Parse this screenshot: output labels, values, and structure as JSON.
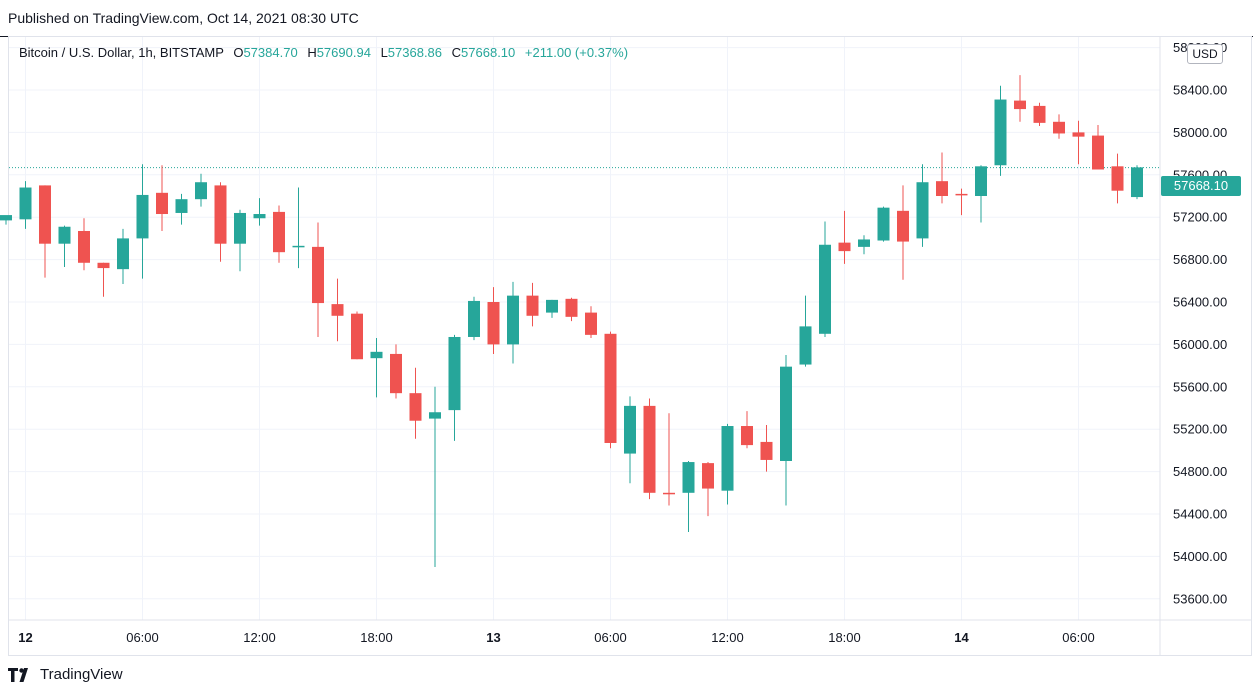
{
  "published_text": "Published on TradingView.com, Oct 14, 2021 08:30 UTC",
  "legend": {
    "symbol": "Bitcoin / U.S. Dollar, 1h, BITSTAMP",
    "o_label": "O",
    "o_value": "57384.70",
    "h_label": "H",
    "h_value": "57690.94",
    "l_label": "L",
    "l_value": "57368.86",
    "c_label": "C",
    "c_value": "57668.10",
    "change": "+211.00 (+0.37%)"
  },
  "currency_button": "USD",
  "last_price_label": "57668.10",
  "footer_brand": "TradingView",
  "colors": {
    "up": "#26a69a",
    "down": "#ef5350",
    "grid": "#f0f3fa",
    "text": "#131722"
  },
  "chart_data": {
    "type": "candlestick",
    "title": "Bitcoin / U.S. Dollar, 1h, BITSTAMP",
    "ylim": [
      53400,
      58900
    ],
    "y_ticks": [
      53600,
      54000,
      54400,
      54800,
      55200,
      55600,
      56000,
      56400,
      56800,
      57200,
      57600,
      58000,
      58400,
      58800
    ],
    "y_tick_labels": [
      "53600.00",
      "54000.00",
      "54400.00",
      "54800.00",
      "55200.00",
      "55600.00",
      "56000.00",
      "56400.00",
      "56800.00",
      "57200.00",
      "57600.00",
      "58000.00",
      "58400.00",
      "58800.00"
    ],
    "x_tick_labels": [
      {
        "index": 1,
        "label": "12",
        "bold": true
      },
      {
        "index": 7,
        "label": "06:00"
      },
      {
        "index": 13,
        "label": "12:00"
      },
      {
        "index": 19,
        "label": "18:00"
      },
      {
        "index": 25,
        "label": "13",
        "bold": true
      },
      {
        "index": 31,
        "label": "06:00"
      },
      {
        "index": 37,
        "label": "12:00"
      },
      {
        "index": 43,
        "label": "18:00"
      },
      {
        "index": 49,
        "label": "14",
        "bold": true
      },
      {
        "index": 55,
        "label": "06:00"
      }
    ],
    "last_price": 57668.1,
    "candles": [
      {
        "o": 57170,
        "h": 57210,
        "l": 57130,
        "c": 57220
      },
      {
        "o": 57180,
        "h": 57540,
        "l": 57090,
        "c": 57480
      },
      {
        "o": 57500,
        "h": 57500,
        "l": 56630,
        "c": 56950
      },
      {
        "o": 56950,
        "h": 57120,
        "l": 56730,
        "c": 57110
      },
      {
        "o": 57070,
        "h": 57190,
        "l": 56700,
        "c": 56770
      },
      {
        "o": 56770,
        "h": 56770,
        "l": 56450,
        "c": 56720
      },
      {
        "o": 56710,
        "h": 57090,
        "l": 56570,
        "c": 57000
      },
      {
        "o": 57000,
        "h": 57700,
        "l": 56620,
        "c": 57410
      },
      {
        "o": 57430,
        "h": 57690,
        "l": 57070,
        "c": 57230
      },
      {
        "o": 57240,
        "h": 57420,
        "l": 57130,
        "c": 57370
      },
      {
        "o": 57370,
        "h": 57610,
        "l": 57300,
        "c": 57530
      },
      {
        "o": 57500,
        "h": 57530,
        "l": 56780,
        "c": 56950
      },
      {
        "o": 56950,
        "h": 57270,
        "l": 56690,
        "c": 57240
      },
      {
        "o": 57190,
        "h": 57380,
        "l": 57120,
        "c": 57230
      },
      {
        "o": 57250,
        "h": 57310,
        "l": 56770,
        "c": 56870
      },
      {
        "o": 56920,
        "h": 57480,
        "l": 56720,
        "c": 56930
      },
      {
        "o": 56920,
        "h": 57150,
        "l": 56070,
        "c": 56390
      },
      {
        "o": 56380,
        "h": 56620,
        "l": 56030,
        "c": 56270
      },
      {
        "o": 56290,
        "h": 56310,
        "l": 55860,
        "c": 55860
      },
      {
        "o": 55870,
        "h": 56060,
        "l": 55500,
        "c": 55930
      },
      {
        "o": 55910,
        "h": 56000,
        "l": 55490,
        "c": 55540
      },
      {
        "o": 55540,
        "h": 55780,
        "l": 55110,
        "c": 55280
      },
      {
        "o": 55300,
        "h": 55600,
        "l": 53900,
        "c": 55360
      },
      {
        "o": 55380,
        "h": 56090,
        "l": 55090,
        "c": 56070
      },
      {
        "o": 56070,
        "h": 56450,
        "l": 56040,
        "c": 56410
      },
      {
        "o": 56400,
        "h": 56540,
        "l": 55910,
        "c": 56000
      },
      {
        "o": 56000,
        "h": 56590,
        "l": 55820,
        "c": 56460
      },
      {
        "o": 56460,
        "h": 56580,
        "l": 56170,
        "c": 56270
      },
      {
        "o": 56300,
        "h": 56420,
        "l": 56250,
        "c": 56420
      },
      {
        "o": 56430,
        "h": 56440,
        "l": 56220,
        "c": 56260
      },
      {
        "o": 56300,
        "h": 56360,
        "l": 56060,
        "c": 56090
      },
      {
        "o": 56100,
        "h": 56120,
        "l": 55020,
        "c": 55070
      },
      {
        "o": 54970,
        "h": 55510,
        "l": 54690,
        "c": 55420
      },
      {
        "o": 55420,
        "h": 55490,
        "l": 54540,
        "c": 54600
      },
      {
        "o": 54600,
        "h": 55350,
        "l": 54480,
        "c": 54590
      },
      {
        "o": 54600,
        "h": 54900,
        "l": 54230,
        "c": 54890
      },
      {
        "o": 54880,
        "h": 54890,
        "l": 54380,
        "c": 54640
      },
      {
        "o": 54620,
        "h": 55250,
        "l": 54490,
        "c": 55230
      },
      {
        "o": 55230,
        "h": 55370,
        "l": 55020,
        "c": 55050
      },
      {
        "o": 55080,
        "h": 55240,
        "l": 54800,
        "c": 54910
      },
      {
        "o": 54900,
        "h": 55900,
        "l": 54480,
        "c": 55790
      },
      {
        "o": 55810,
        "h": 56460,
        "l": 55790,
        "c": 56170
      },
      {
        "o": 56100,
        "h": 57160,
        "l": 56070,
        "c": 56940
      },
      {
        "o": 56960,
        "h": 57260,
        "l": 56760,
        "c": 56880
      },
      {
        "o": 56920,
        "h": 57030,
        "l": 56850,
        "c": 56990
      },
      {
        "o": 56980,
        "h": 57300,
        "l": 56970,
        "c": 57290
      },
      {
        "o": 57260,
        "h": 57500,
        "l": 56610,
        "c": 56970
      },
      {
        "o": 57000,
        "h": 57700,
        "l": 56920,
        "c": 57530
      },
      {
        "o": 57540,
        "h": 57810,
        "l": 57330,
        "c": 57400
      },
      {
        "o": 57420,
        "h": 57470,
        "l": 57220,
        "c": 57410
      },
      {
        "o": 57400,
        "h": 57690,
        "l": 57150,
        "c": 57680
      },
      {
        "o": 57690,
        "h": 58440,
        "l": 57590,
        "c": 58310
      },
      {
        "o": 58300,
        "h": 58540,
        "l": 58100,
        "c": 58220
      },
      {
        "o": 58250,
        "h": 58280,
        "l": 58060,
        "c": 58090
      },
      {
        "o": 58100,
        "h": 58170,
        "l": 57940,
        "c": 57990
      },
      {
        "o": 58000,
        "h": 58110,
        "l": 57700,
        "c": 57960
      },
      {
        "o": 57970,
        "h": 58070,
        "l": 57660,
        "c": 57650
      },
      {
        "o": 57680,
        "h": 57800,
        "l": 57330,
        "c": 57450
      },
      {
        "o": 57390,
        "h": 57690,
        "l": 57370,
        "c": 57670
      }
    ]
  }
}
